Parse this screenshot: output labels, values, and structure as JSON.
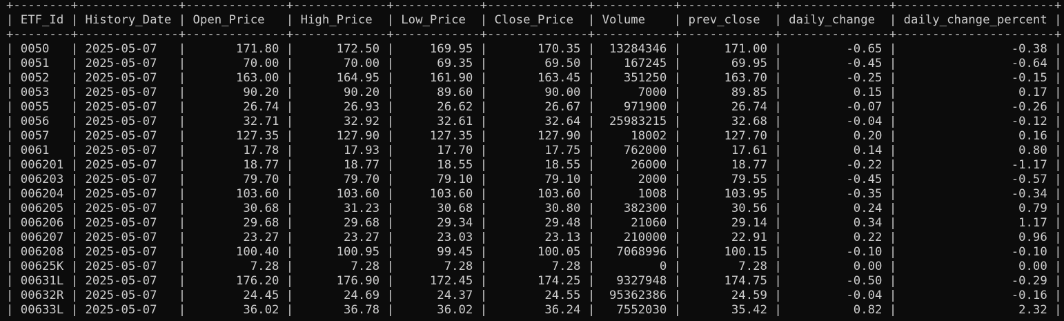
{
  "table": {
    "columns": [
      "ETF_Id",
      "History_Date",
      "Open_Price",
      "High_Price",
      "Low_Price",
      "Close_Price",
      "Volume",
      "prev_close",
      "daily_change",
      "daily_change_percent"
    ],
    "widths": [
      8,
      14,
      14,
      13,
      12,
      14,
      11,
      13,
      15,
      22
    ],
    "align": [
      "left",
      "left",
      "right",
      "right",
      "right",
      "right",
      "right",
      "right",
      "right",
      "right"
    ],
    "rows": [
      [
        "0050",
        "2025-05-07",
        "171.80",
        "172.50",
        "169.95",
        "170.35",
        "13284346",
        "171.00",
        "-0.65",
        "-0.38"
      ],
      [
        "0051",
        "2025-05-07",
        "70.00",
        "70.00",
        "69.35",
        "69.50",
        "167245",
        "69.95",
        "-0.45",
        "-0.64"
      ],
      [
        "0052",
        "2025-05-07",
        "163.00",
        "164.95",
        "161.90",
        "163.45",
        "351250",
        "163.70",
        "-0.25",
        "-0.15"
      ],
      [
        "0053",
        "2025-05-07",
        "90.20",
        "90.20",
        "89.60",
        "90.00",
        "7000",
        "89.85",
        "0.15",
        "0.17"
      ],
      [
        "0055",
        "2025-05-07",
        "26.74",
        "26.93",
        "26.62",
        "26.67",
        "971900",
        "26.74",
        "-0.07",
        "-0.26"
      ],
      [
        "0056",
        "2025-05-07",
        "32.71",
        "32.92",
        "32.61",
        "32.64",
        "25983215",
        "32.68",
        "-0.04",
        "-0.12"
      ],
      [
        "0057",
        "2025-05-07",
        "127.35",
        "127.90",
        "127.35",
        "127.90",
        "18002",
        "127.70",
        "0.20",
        "0.16"
      ],
      [
        "0061",
        "2025-05-07",
        "17.78",
        "17.93",
        "17.70",
        "17.75",
        "762000",
        "17.61",
        "0.14",
        "0.80"
      ],
      [
        "006201",
        "2025-05-07",
        "18.77",
        "18.77",
        "18.55",
        "18.55",
        "26000",
        "18.77",
        "-0.22",
        "-1.17"
      ],
      [
        "006203",
        "2025-05-07",
        "79.70",
        "79.70",
        "79.10",
        "79.10",
        "2000",
        "79.55",
        "-0.45",
        "-0.57"
      ],
      [
        "006204",
        "2025-05-07",
        "103.60",
        "103.60",
        "103.60",
        "103.60",
        "1008",
        "103.95",
        "-0.35",
        "-0.34"
      ],
      [
        "006205",
        "2025-05-07",
        "30.68",
        "31.23",
        "30.68",
        "30.80",
        "382300",
        "30.56",
        "0.24",
        "0.79"
      ],
      [
        "006206",
        "2025-05-07",
        "29.68",
        "29.68",
        "29.34",
        "29.48",
        "21060",
        "29.14",
        "0.34",
        "1.17"
      ],
      [
        "006207",
        "2025-05-07",
        "23.27",
        "23.27",
        "23.03",
        "23.13",
        "210000",
        "22.91",
        "0.22",
        "0.96"
      ],
      [
        "006208",
        "2025-05-07",
        "100.40",
        "100.95",
        "99.45",
        "100.05",
        "7068996",
        "100.15",
        "-0.10",
        "-0.10"
      ],
      [
        "00625K",
        "2025-05-07",
        "7.28",
        "7.28",
        "7.28",
        "7.28",
        "0",
        "7.28",
        "0.00",
        "0.00"
      ],
      [
        "00631L",
        "2025-05-07",
        "176.20",
        "176.90",
        "172.45",
        "174.25",
        "9327948",
        "174.75",
        "-0.50",
        "-0.29"
      ],
      [
        "00632R",
        "2025-05-07",
        "24.45",
        "24.69",
        "24.37",
        "24.55",
        "95362386",
        "24.59",
        "-0.04",
        "-0.16"
      ],
      [
        "00633L",
        "2025-05-07",
        "36.02",
        "36.78",
        "36.02",
        "36.24",
        "7552030",
        "35.42",
        "0.82",
        "2.32"
      ]
    ]
  },
  "colors": {
    "background": "#0c0c0c",
    "foreground": "#cccccc"
  }
}
